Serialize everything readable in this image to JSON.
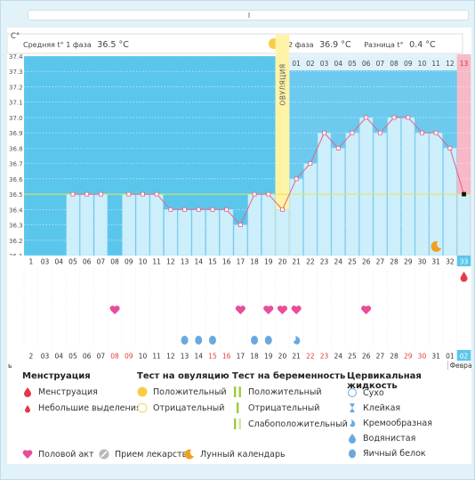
{
  "header": {
    "unit": "C°",
    "phase1_label": "Средняя t° 1 фаза",
    "phase1_value": "36.5 °C",
    "phase2_label": "2 фаза",
    "phase2_value": "36.9 °C",
    "diff_label": "Разница t°",
    "diff_value": "0.4 °C",
    "ovulation_label": "ОВУЛЯЦИЯ"
  },
  "month_labels": {
    "left": "ь",
    "right": "Февра."
  },
  "colors": {
    "phase1_bg": "#5bc6ec",
    "phase2_bg": "#6ccaee",
    "bar_fill": "#cdeefb",
    "ovulation": "#fff3a6",
    "pink_day": "#f7b8c8",
    "line": "#e0628a",
    "coverline": "#e5e64a",
    "heart": "#e94d9a",
    "drop": "#69a9e0",
    "blood": "#e23a4a"
  },
  "cycle_day_labels": [
    "01",
    "02",
    "03",
    "04",
    "05",
    "06",
    "07",
    "08",
    "09",
    "10",
    "11",
    "12",
    "13"
  ],
  "chart_data": {
    "type": "line",
    "ylabel": "C°",
    "ylim": [
      36.1,
      37.4
    ],
    "y_ticks": [
      "37.4",
      "37.3",
      "37.2",
      "37.1",
      "37.0",
      "36.9",
      "36.8",
      "36.7",
      "36.6",
      "36.5",
      "36.4",
      "36.3",
      "36.2",
      "36.1"
    ],
    "coverline": 36.5,
    "x_labels": [
      "1",
      "03",
      "04",
      "05",
      "06",
      "07",
      "08",
      "09",
      "10",
      "11",
      "12",
      "13",
      "14",
      "15",
      "16",
      "17",
      "18",
      "19",
      "20",
      "21",
      "22",
      "23",
      "24",
      "25",
      "26",
      "27",
      "28",
      "29",
      "30",
      "31",
      "32",
      "33"
    ],
    "dates": [
      "2",
      "03",
      "04",
      "05",
      "06",
      "07",
      "08",
      "09",
      "10",
      "11",
      "12",
      "13",
      "14",
      "15",
      "16",
      "17",
      "18",
      "19",
      "20",
      "21",
      "22",
      "23",
      "24",
      "25",
      "26",
      "27",
      "28",
      "29",
      "30",
      "31",
      "01",
      "02"
    ],
    "red_dates": [
      "08",
      "09",
      "15",
      "16",
      "22",
      "23",
      "29",
      "30"
    ],
    "series": [
      {
        "values": [
          null,
          null,
          null,
          36.5,
          36.5,
          36.5,
          null,
          36.5,
          36.5,
          36.5,
          36.4,
          36.4,
          36.4,
          36.4,
          36.4,
          36.3,
          36.5,
          36.5,
          36.4,
          36.6,
          36.7,
          36.9,
          36.8,
          36.9,
          37.0,
          36.9,
          37.0,
          37.0,
          36.9,
          36.9,
          36.8,
          36.5
        ]
      }
    ],
    "bars": [
      null,
      null,
      null,
      36.5,
      36.5,
      36.5,
      null,
      36.5,
      36.5,
      36.5,
      36.4,
      36.4,
      36.4,
      36.4,
      36.4,
      36.3,
      36.5,
      36.5,
      36.4,
      36.6,
      36.7,
      36.9,
      36.8,
      36.9,
      37.0,
      36.9,
      37.0,
      37.0,
      36.9,
      36.9,
      36.8,
      36.5
    ],
    "ovulation_day": "20",
    "today_day": "33",
    "hearts": [
      "08",
      "17",
      "19",
      "20",
      "21",
      "26"
    ],
    "ewcm": [
      "13",
      "14",
      "15",
      "18",
      "19"
    ],
    "creamy": [
      "21"
    ],
    "small_blood": [
      "33"
    ],
    "moon": [
      "31"
    ]
  },
  "legend": {
    "col1": {
      "title": "Менструация",
      "items": [
        "Менструация",
        "Небольшие выделения"
      ]
    },
    "col2": {
      "title": "Тест на овуляцию",
      "items": [
        "Положительный",
        "Отрицательный"
      ]
    },
    "col3": {
      "title": "Тест на беременность",
      "items": [
        "Положительный",
        "Отрицательный",
        "Слабоположительный"
      ]
    },
    "col4": {
      "title": "Цервикальная жидкость",
      "items": [
        "Сухо",
        "Клейкая",
        "Кремообразная",
        "Водянистая",
        "Яичный белок"
      ]
    },
    "bottom": [
      "Половой акт",
      "Прием лекарств",
      "Лунный календарь"
    ]
  }
}
